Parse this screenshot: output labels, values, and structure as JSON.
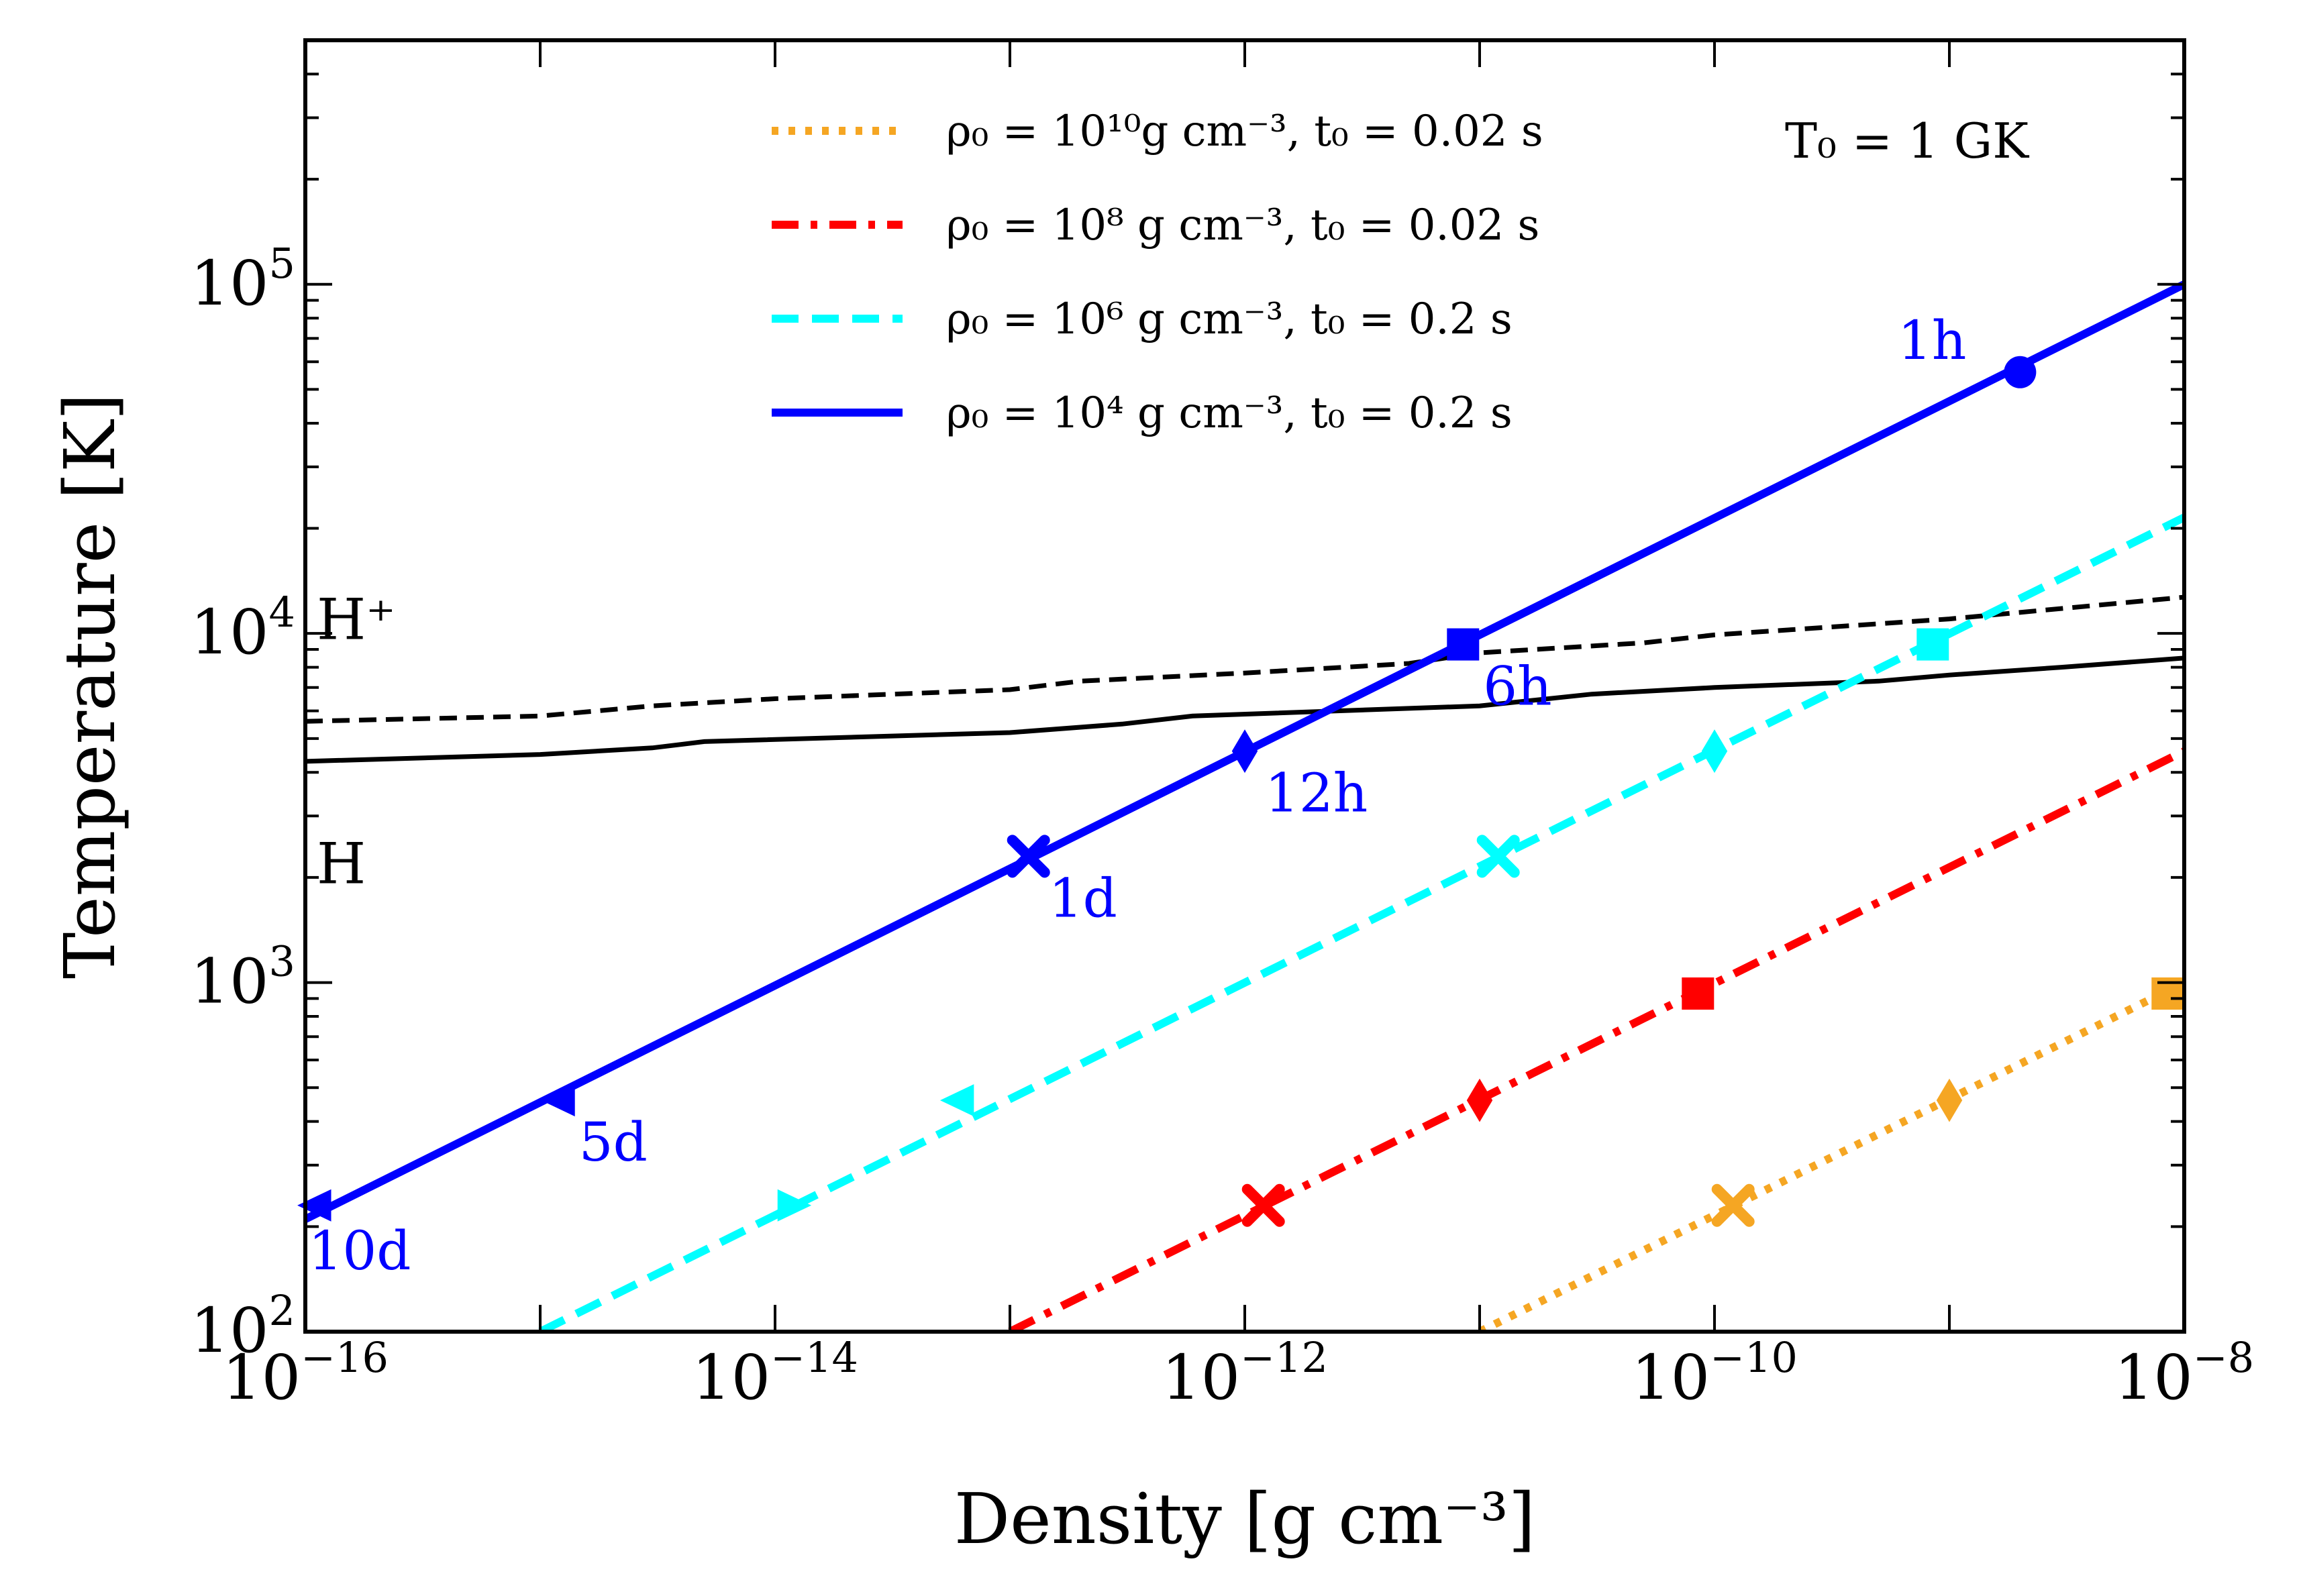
{
  "chart_data": {
    "type": "line",
    "xlabel": "Density [g cm⁻³]",
    "ylabel": "Temperature [K]",
    "x_scale": "log",
    "y_scale": "log",
    "xlim": [
      1e-16,
      1e-08
    ],
    "ylim": [
      100,
      500000
    ],
    "x_ticks": [
      {
        "base": "10",
        "exp": "−16",
        "value": 1e-16
      },
      {
        "base": "10",
        "exp": "−14",
        "value": 1e-14
      },
      {
        "base": "10",
        "exp": "−12",
        "value": 1e-12
      },
      {
        "base": "10",
        "exp": "−10",
        "value": 1e-10
      },
      {
        "base": "10",
        "exp": "−8",
        "value": 1e-08
      }
    ],
    "y_ticks": [
      {
        "base": "10",
        "exp": "2",
        "value": 100
      },
      {
        "base": "10",
        "exp": "3",
        "value": 1000
      },
      {
        "base": "10",
        "exp": "4",
        "value": 10000
      },
      {
        "base": "10",
        "exp": "5",
        "value": 100000
      }
    ],
    "grid": false,
    "legend_position": "top",
    "parameter_label": "T₀ = 1 GK",
    "series": [
      {
        "name": "ρ₀ = 10¹⁰g cm⁻³, t₀ = 0.02 s",
        "color": "#f5a623",
        "style": "dotted",
        "line": [
          [
            1e-11,
            100
          ],
          [
            1e-08,
            1000
          ]
        ],
        "markers": [
          {
            "x": 1.2e-10,
            "y": 230,
            "shape": "x"
          },
          {
            "x": 1e-09,
            "y": 460,
            "shape": "diamond"
          },
          {
            "x": 8.5e-09,
            "y": 930,
            "shape": "square"
          }
        ]
      },
      {
        "name": "ρ₀ = 10⁸ g cm⁻³, t₀ = 0.02 s",
        "color": "#ff0000",
        "style": "dashdot",
        "line": [
          [
            1e-13,
            100
          ],
          [
            1e-08,
            4600
          ]
        ],
        "markers": [
          {
            "x": 1.2e-12,
            "y": 230,
            "shape": "x"
          },
          {
            "x": 1e-11,
            "y": 460,
            "shape": "diamond"
          },
          {
            "x": 8.5e-11,
            "y": 930,
            "shape": "square"
          }
        ]
      },
      {
        "name": "ρ₀ = 10⁶ g cm⁻³, t₀ = 0.2 s",
        "color": "#00ffff",
        "style": "dashed",
        "line": [
          [
            1e-15,
            100
          ],
          [
            1e-08,
            21500
          ]
        ],
        "markers": [
          {
            "x": 1.2e-14,
            "y": 230,
            "shape": "triangle-right"
          },
          {
            "x": 6e-14,
            "y": 460,
            "shape": "triangle-left"
          },
          {
            "x": 1.2e-11,
            "y": 2300,
            "shape": "x"
          },
          {
            "x": 1e-10,
            "y": 4600,
            "shape": "diamond"
          },
          {
            "x": 8.5e-10,
            "y": 9300,
            "shape": "square"
          }
        ]
      },
      {
        "name": "ρ₀ = 10⁴ g cm⁻³, t₀ = 0.2 s",
        "color": "#0000ff",
        "style": "solid",
        "line": [
          [
            1e-16,
            210
          ],
          [
            1e-08,
            100000
          ]
        ],
        "markers": [
          {
            "x": 1.1e-16,
            "y": 230,
            "shape": "triangle-left",
            "label": "10d"
          },
          {
            "x": 1.2e-15,
            "y": 460,
            "shape": "triangle-left",
            "label": "5d"
          },
          {
            "x": 1.2e-13,
            "y": 2300,
            "shape": "x",
            "label": "1d"
          },
          {
            "x": 1e-12,
            "y": 4600,
            "shape": "diamond",
            "label": "12h"
          },
          {
            "x": 8.5e-12,
            "y": 9300,
            "shape": "square",
            "label": "6h"
          },
          {
            "x": 2e-09,
            "y": 56000,
            "shape": "circle",
            "label": "1h"
          }
        ]
      }
    ],
    "boundary_curves": [
      {
        "style": "dashed",
        "color": "#000000",
        "points": [
          [
            1e-16,
            5600
          ],
          [
            1e-15,
            5800
          ],
          [
            3e-15,
            6200
          ],
          [
            1e-14,
            6500
          ],
          [
            1e-13,
            6900
          ],
          [
            2e-13,
            7300
          ],
          [
            1e-12,
            7700
          ],
          [
            5e-12,
            8200
          ],
          [
            1e-11,
            8800
          ],
          [
            5e-11,
            9400
          ],
          [
            1e-10,
            9900
          ],
          [
            1e-09,
            11000
          ],
          [
            1e-08,
            12700
          ]
        ]
      },
      {
        "style": "solid",
        "color": "#000000",
        "points": [
          [
            1e-16,
            4300
          ],
          [
            1e-15,
            4500
          ],
          [
            3e-15,
            4700
          ],
          [
            5e-15,
            4900
          ],
          [
            1e-13,
            5200
          ],
          [
            3e-13,
            5500
          ],
          [
            6e-13,
            5800
          ],
          [
            1e-11,
            6200
          ],
          [
            3e-11,
            6700
          ],
          [
            1e-10,
            7000
          ],
          [
            5e-10,
            7300
          ],
          [
            1e-09,
            7600
          ],
          [
            3e-09,
            8000
          ],
          [
            1e-08,
            8500
          ]
        ]
      }
    ],
    "region_labels": [
      {
        "text": "H⁺",
        "x": 3e-16,
        "y": 11000
      },
      {
        "text": "H",
        "x": 3e-16,
        "y": 2200
      }
    ]
  }
}
